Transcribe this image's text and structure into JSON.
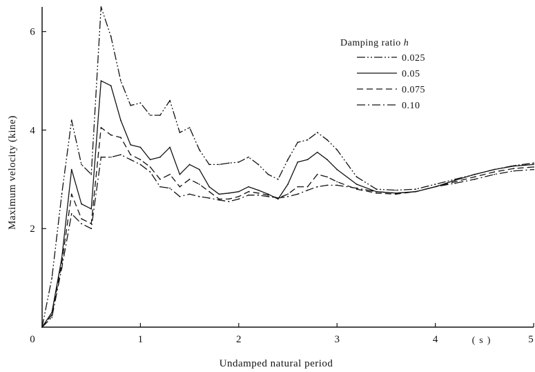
{
  "chart_data": {
    "type": "line",
    "title": "",
    "xlabel": "Undamped natural period",
    "x_unit": "(s)",
    "ylabel": "Maximum velocity (kine)",
    "xlim": [
      0,
      5
    ],
    "ylim": [
      0,
      6.5
    ],
    "x_ticks": [
      0,
      1,
      2,
      3,
      4,
      5
    ],
    "x_tick_labels": [
      "0",
      "1",
      "2",
      "3",
      "4",
      "5"
    ],
    "y_ticks": [
      2,
      4,
      6
    ],
    "y_tick_labels": [
      "2",
      "4",
      "6"
    ],
    "grid": false,
    "legend_title": "Damping ratio h",
    "legend_position": "top-right",
    "series": [
      {
        "name": "0.025",
        "style": "dash-dot-dot",
        "x": [
          0,
          0.1,
          0.2,
          0.3,
          0.4,
          0.5,
          0.6,
          0.7,
          0.8,
          0.9,
          1.0,
          1.1,
          1.2,
          1.3,
          1.4,
          1.5,
          1.6,
          1.7,
          1.8,
          1.9,
          2.0,
          2.1,
          2.2,
          2.3,
          2.4,
          2.5,
          2.6,
          2.7,
          2.8,
          2.9,
          3.0,
          3.2,
          3.4,
          3.6,
          3.8,
          4.0,
          4.2,
          4.4,
          4.6,
          4.8,
          5.0
        ],
        "values": [
          0,
          1.0,
          2.7,
          4.2,
          3.3,
          3.1,
          6.5,
          5.9,
          5.0,
          4.5,
          4.55,
          4.3,
          4.3,
          4.6,
          3.95,
          4.05,
          3.6,
          3.3,
          3.3,
          3.33,
          3.35,
          3.45,
          3.3,
          3.1,
          3.0,
          3.4,
          3.75,
          3.8,
          3.95,
          3.8,
          3.6,
          3.05,
          2.8,
          2.78,
          2.8,
          2.9,
          3.0,
          3.1,
          3.2,
          3.28,
          3.33
        ]
      },
      {
        "name": "0.05",
        "style": "solid",
        "x": [
          0,
          0.1,
          0.2,
          0.3,
          0.4,
          0.5,
          0.6,
          0.7,
          0.8,
          0.9,
          1.0,
          1.1,
          1.2,
          1.3,
          1.4,
          1.5,
          1.6,
          1.7,
          1.8,
          1.9,
          2.0,
          2.1,
          2.2,
          2.3,
          2.4,
          2.5,
          2.6,
          2.7,
          2.8,
          2.9,
          3.0,
          3.2,
          3.4,
          3.6,
          3.8,
          4.0,
          4.2,
          4.4,
          4.6,
          4.8,
          5.0
        ],
        "values": [
          0,
          0.3,
          1.4,
          3.2,
          2.5,
          2.4,
          5.0,
          4.9,
          4.2,
          3.7,
          3.65,
          3.4,
          3.45,
          3.65,
          3.1,
          3.3,
          3.2,
          2.85,
          2.7,
          2.72,
          2.75,
          2.85,
          2.78,
          2.7,
          2.6,
          2.9,
          3.35,
          3.4,
          3.55,
          3.4,
          3.2,
          2.9,
          2.75,
          2.72,
          2.75,
          2.85,
          2.98,
          3.1,
          3.2,
          3.27,
          3.3
        ]
      },
      {
        "name": "0.075",
        "style": "dashed",
        "x": [
          0,
          0.1,
          0.2,
          0.3,
          0.4,
          0.5,
          0.6,
          0.7,
          0.8,
          0.9,
          1.0,
          1.1,
          1.2,
          1.3,
          1.4,
          1.5,
          1.6,
          1.7,
          1.8,
          1.9,
          2.0,
          2.1,
          2.2,
          2.3,
          2.4,
          2.5,
          2.6,
          2.7,
          2.8,
          2.9,
          3.0,
          3.2,
          3.4,
          3.6,
          3.8,
          4.0,
          4.2,
          4.4,
          4.6,
          4.8,
          5.0
        ],
        "values": [
          0,
          0.25,
          1.3,
          2.7,
          2.2,
          2.1,
          4.05,
          3.9,
          3.85,
          3.5,
          3.4,
          3.25,
          3.0,
          3.1,
          2.85,
          3.0,
          2.9,
          2.75,
          2.6,
          2.6,
          2.65,
          2.75,
          2.72,
          2.68,
          2.62,
          2.7,
          2.85,
          2.85,
          3.1,
          3.05,
          2.95,
          2.8,
          2.72,
          2.7,
          2.75,
          2.85,
          2.95,
          3.05,
          3.15,
          3.22,
          3.25
        ]
      },
      {
        "name": "0.10",
        "style": "dash-dot",
        "x": [
          0,
          0.1,
          0.2,
          0.3,
          0.4,
          0.5,
          0.6,
          0.7,
          0.8,
          0.9,
          1.0,
          1.1,
          1.2,
          1.3,
          1.4,
          1.5,
          1.6,
          1.7,
          1.8,
          1.9,
          2.0,
          2.1,
          2.2,
          2.3,
          2.4,
          2.5,
          2.6,
          2.7,
          2.8,
          2.9,
          3.0,
          3.2,
          3.4,
          3.6,
          3.8,
          4.0,
          4.2,
          4.4,
          4.6,
          4.8,
          5.0
        ],
        "values": [
          0,
          0.2,
          1.2,
          2.3,
          2.1,
          2.0,
          3.45,
          3.45,
          3.5,
          3.4,
          3.3,
          3.15,
          2.85,
          2.82,
          2.65,
          2.7,
          2.65,
          2.62,
          2.58,
          2.55,
          2.6,
          2.68,
          2.68,
          2.65,
          2.62,
          2.65,
          2.7,
          2.78,
          2.85,
          2.88,
          2.88,
          2.82,
          2.75,
          2.72,
          2.75,
          2.85,
          2.92,
          3.0,
          3.1,
          3.17,
          3.2
        ]
      }
    ]
  }
}
